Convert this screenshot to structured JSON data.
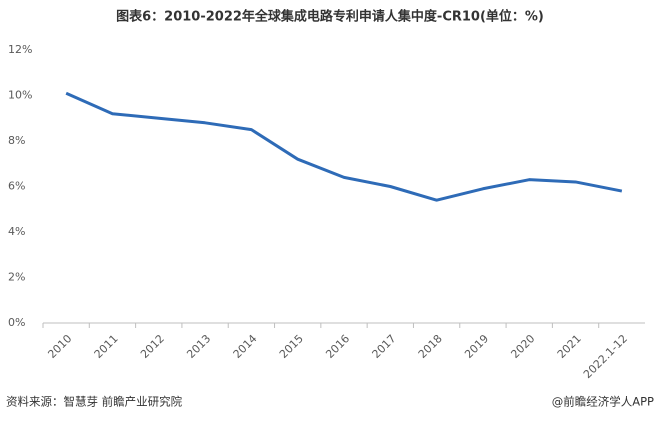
{
  "chart_data": {
    "type": "line",
    "title": "图表6：2010-2022年全球集成电路专利申请人集中度-CR10(单位：%)",
    "categories": [
      "2010",
      "2011",
      "2012",
      "2013",
      "2014",
      "2015",
      "2016",
      "2017",
      "2018",
      "2019",
      "2020",
      "2021",
      "2022.1-12"
    ],
    "series": [
      {
        "name": "CR10",
        "color": "#2e6bb7",
        "values": [
          10.1,
          9.2,
          9.0,
          8.8,
          8.5,
          7.2,
          6.4,
          6.0,
          5.4,
          5.9,
          6.3,
          6.2,
          5.8
        ]
      }
    ],
    "ylim": [
      0,
      12
    ],
    "yticks": [
      {
        "value": 0,
        "label": "0%"
      },
      {
        "value": 2,
        "label": "2%"
      },
      {
        "value": 4,
        "label": "4%"
      },
      {
        "value": 6,
        "label": "6%"
      },
      {
        "value": 8,
        "label": "8%"
      },
      {
        "value": 10,
        "label": "10%"
      },
      {
        "value": 12,
        "label": "12%"
      }
    ],
    "source": "资料来源：智慧芽 前瞻产业研究院",
    "credit": "@前瞻经济学人APP"
  }
}
